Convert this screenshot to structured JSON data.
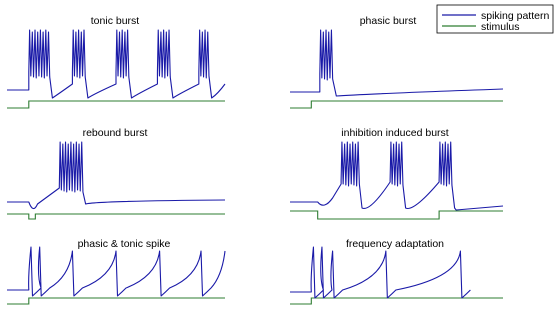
{
  "chart_data": {
    "type": "line",
    "legend": {
      "placement": "top-right",
      "entries": [
        {
          "label": "spiking pattern",
          "color": "#1a1aa8"
        },
        {
          "label": "stimulus",
          "color": "#2e7d32"
        }
      ]
    },
    "colors": {
      "spiking": "#1a1aa8",
      "stimulus": "#2e7d32"
    },
    "grid": false,
    "axes_visible": false,
    "panels": [
      {
        "title": "tonic burst",
        "pattern": "tonic_burst",
        "stimulus": {
          "type": "step",
          "onset_fraction": 0.1,
          "direction": "up"
        },
        "burst_onsets_fraction": [
          0.1,
          0.3,
          0.5,
          0.69,
          0.88
        ],
        "spikes_per_burst": [
          8,
          5,
          5,
          5,
          4
        ]
      },
      {
        "title": "phasic burst",
        "pattern": "phasic_burst",
        "stimulus": {
          "type": "step",
          "onset_fraction": 0.1,
          "direction": "up"
        },
        "burst_onsets_fraction": [
          0.14
        ],
        "spikes_per_burst": [
          5
        ]
      },
      {
        "title": "rebound burst",
        "pattern": "rebound_burst",
        "stimulus": {
          "type": "negative_pulse",
          "onset_fraction": 0.1,
          "offset_fraction": 0.13
        },
        "burst_onsets_fraction": [
          0.24
        ],
        "spikes_per_burst": [
          9
        ]
      },
      {
        "title": "inhibition induced burst",
        "pattern": "inhibition_induced_burst",
        "stimulus": {
          "type": "negative_step",
          "onset_fraction": 0.13,
          "offset_fraction": 0.7
        },
        "burst_onsets_fraction": [
          0.24,
          0.47,
          0.7
        ],
        "spikes_per_burst": [
          7,
          5,
          5
        ]
      },
      {
        "title": "phasic & tonic spike",
        "pattern": "phasic_tonic_spike",
        "stimulus": {
          "type": "step",
          "onset_fraction": 0.1,
          "direction": "up"
        },
        "spike_times_fraction": [
          0.11,
          0.15,
          0.3,
          0.5,
          0.7,
          0.89,
          1.0
        ]
      },
      {
        "title": "frequency adaptation",
        "pattern": "frequency_adaptation",
        "stimulus": {
          "type": "step",
          "onset_fraction": 0.1,
          "direction": "up"
        },
        "spike_times_fraction": [
          0.11,
          0.15,
          0.2,
          0.45,
          0.8
        ]
      }
    ]
  }
}
